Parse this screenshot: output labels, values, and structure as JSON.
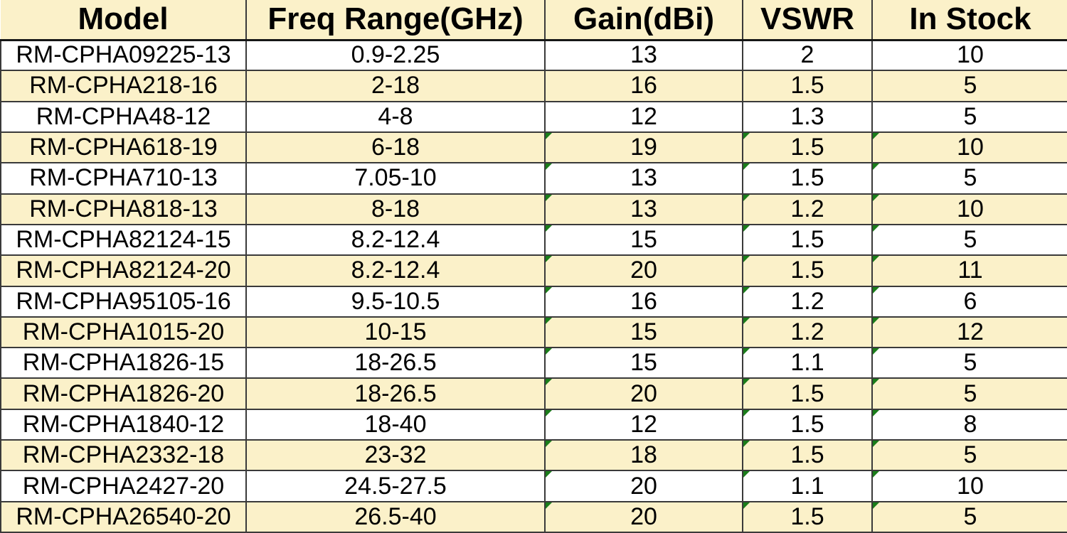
{
  "table": {
    "columns": [
      {
        "key": "model",
        "label": "Model"
      },
      {
        "key": "freq",
        "label": "Freq Range(GHz)"
      },
      {
        "key": "gain",
        "label": "Gain(dBi)"
      },
      {
        "key": "vswr",
        "label": "VSWR"
      },
      {
        "key": "stock",
        "label": "In Stock"
      }
    ],
    "error_marker_columns": [
      "gain",
      "vswr",
      "stock"
    ],
    "rows": [
      {
        "model": "RM-CPHA09225-13",
        "freq": "0.9-2.25",
        "gain": "13",
        "vswr": "2",
        "stock": "10",
        "has_error_markers": false
      },
      {
        "model": "RM-CPHA218-16",
        "freq": "2-18",
        "gain": "16",
        "vswr": "1.5",
        "stock": "5",
        "has_error_markers": false
      },
      {
        "model": "RM-CPHA48-12",
        "freq": "4-8",
        "gain": "12",
        "vswr": "1.3",
        "stock": "5",
        "has_error_markers": false
      },
      {
        "model": "RM-CPHA618-19",
        "freq": "6-18",
        "gain": "19",
        "vswr": "1.5",
        "stock": "10",
        "has_error_markers": true
      },
      {
        "model": "RM-CPHA710-13",
        "freq": "7.05-10",
        "gain": "13",
        "vswr": "1.5",
        "stock": "5",
        "has_error_markers": true
      },
      {
        "model": "RM-CPHA818-13",
        "freq": "8-18",
        "gain": "13",
        "vswr": "1.2",
        "stock": "10",
        "has_error_markers": true
      },
      {
        "model": "RM-CPHA82124-15",
        "freq": "8.2-12.4",
        "gain": "15",
        "vswr": "1.5",
        "stock": "5",
        "has_error_markers": true
      },
      {
        "model": "RM-CPHA82124-20",
        "freq": "8.2-12.4",
        "gain": "20",
        "vswr": "1.5",
        "stock": "11",
        "has_error_markers": true
      },
      {
        "model": "RM-CPHA95105-16",
        "freq": "9.5-10.5",
        "gain": "16",
        "vswr": "1.2",
        "stock": "6",
        "has_error_markers": true
      },
      {
        "model": "RM-CPHA1015-20",
        "freq": "10-15",
        "gain": "15",
        "vswr": "1.2",
        "stock": "12",
        "has_error_markers": true
      },
      {
        "model": "RM-CPHA1826-15",
        "freq": "18-26.5",
        "gain": "15",
        "vswr": "1.1",
        "stock": "5",
        "has_error_markers": true
      },
      {
        "model": "RM-CPHA1826-20",
        "freq": "18-26.5",
        "gain": "20",
        "vswr": "1.5",
        "stock": "5",
        "has_error_markers": true
      },
      {
        "model": "RM-CPHA1840-12",
        "freq": "18-40",
        "gain": "12",
        "vswr": "1.5",
        "stock": "8",
        "has_error_markers": true
      },
      {
        "model": "RM-CPHA2332-18",
        "freq": "23-32",
        "gain": "18",
        "vswr": "1.5",
        "stock": "5",
        "has_error_markers": true
      },
      {
        "model": "RM-CPHA2427-20",
        "freq": "24.5-27.5",
        "gain": "20",
        "vswr": "1.1",
        "stock": "10",
        "has_error_markers": true
      },
      {
        "model": "RM-CPHA26540-20",
        "freq": "26.5-40",
        "gain": "20",
        "vswr": "1.5",
        "stock": "5",
        "has_error_markers": true
      }
    ],
    "colors": {
      "row_band": "#fbf1c9",
      "grid_border": "#3a3a3a",
      "error_marker_green": "#1a7d1a",
      "text": "#000000"
    }
  }
}
